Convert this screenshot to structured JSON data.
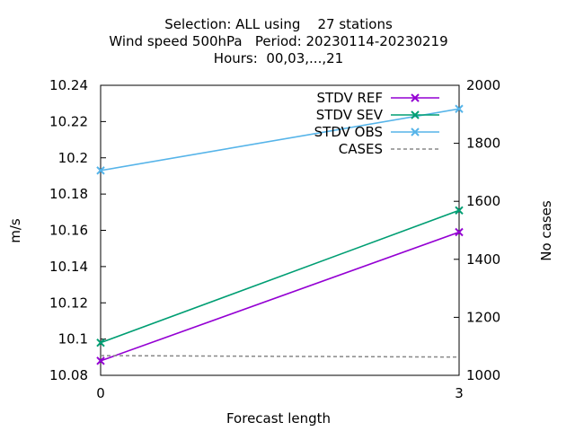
{
  "chart_data": {
    "type": "line",
    "title_lines": [
      "Selection: ALL using    27 stations",
      "Wind speed 500hPa   Period: 20230114-20230219",
      "Hours:  00,03,...,21"
    ],
    "xlabel": "Forecast length",
    "ylabel": "m/s",
    "y2label": "No cases",
    "x": [
      0,
      3
    ],
    "xlim": [
      0,
      3
    ],
    "xticks": [
      "0",
      "3"
    ],
    "ylim": [
      10.08,
      10.24
    ],
    "yticks": [
      "10.08",
      "10.1",
      "10.12",
      "10.14",
      "10.16",
      "10.18",
      "10.2",
      "10.22",
      "10.24"
    ],
    "y2lim": [
      1000,
      2000
    ],
    "y2ticks": [
      "1000",
      "1200",
      "1400",
      "1600",
      "1800",
      "2000"
    ],
    "legend_position": "top-right",
    "series": [
      {
        "name": "STDV REF",
        "axis": "y",
        "values": [
          10.088,
          10.159
        ],
        "color": "#9400d3",
        "style": "solid",
        "marker": "x"
      },
      {
        "name": "STDV SEV",
        "axis": "y",
        "values": [
          10.098,
          10.171
        ],
        "color": "#009e73",
        "style": "solid",
        "marker": "x"
      },
      {
        "name": "STDV OBS",
        "axis": "y",
        "values": [
          10.193,
          10.227
        ],
        "color": "#56b4e9",
        "style": "solid",
        "marker": "x"
      },
      {
        "name": "CASES",
        "axis": "y2",
        "values": [
          1068,
          1063
        ],
        "color": "#888888",
        "style": "dashed",
        "marker": "none"
      }
    ]
  }
}
